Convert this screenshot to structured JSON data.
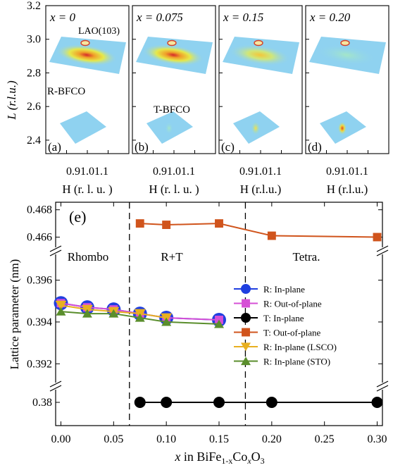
{
  "rsm": {
    "y_axis_label": "L (r.l.u.)",
    "y_ticks": [
      "3.2",
      "3.0",
      "2.8",
      "2.6",
      "2.4"
    ],
    "y_range": [
      2.32,
      3.2
    ],
    "panels": [
      {
        "label": "(a)",
        "x_text": "x = 0",
        "x_ticks": "0.91.01.1",
        "x_axis_label": "H (r. l. u. )",
        "annotations": [
          "LAO(103)",
          "R-BFCO"
        ]
      },
      {
        "label": "(b)",
        "x_text": "x = 0.075",
        "x_ticks": "0.91.01.1",
        "x_axis_label": "H (r. l. u. )",
        "annotations": [
          "T-BFCO"
        ]
      },
      {
        "label": "(c)",
        "x_text": "x = 0.15",
        "x_ticks": "0.91.01.1",
        "x_axis_label": "H (r.l.u.)",
        "annotations": []
      },
      {
        "label": "(d)",
        "x_text": "x = 0.20",
        "x_ticks": "0.91.01.1",
        "x_axis_label": "H (r.l.u.)",
        "annotations": []
      }
    ]
  },
  "lattice": {
    "panel_label": "(e)",
    "ylabel": "Lattice parameter  (nm)",
    "xlabel_prefix": "x",
    "xlabel_text": " in BiFe",
    "xlabel_sub1": "1-x",
    "xlabel_mid": "Co",
    "xlabel_sub2": "x",
    "xlabel_end": "O",
    "xlabel_sub3": "3",
    "regions": [
      "Rhombo",
      "R+T",
      "Tetra."
    ],
    "boundaries": [
      0.065,
      0.175
    ]
  },
  "chart_data": {
    "type": "line",
    "title": "",
    "xlabel": "x in BiFe1-xCoxO3",
    "ylabel": "Lattice parameter (nm)",
    "xlim": [
      -0.005,
      0.305
    ],
    "x_ticks": [
      "0.00",
      "0.05",
      "0.10",
      "0.15",
      "0.20",
      "0.25",
      "0.30"
    ],
    "y_ticks_upper": [
      "0.468",
      "0.466"
    ],
    "y_ticks_middle": [
      "0.396",
      "0.394",
      "0.392"
    ],
    "y_ticks_lower": [
      "0.38"
    ],
    "broken_axis_segments": [
      [
        0.3795,
        0.3805
      ],
      [
        0.3912,
        0.3972
      ],
      [
        0.4652,
        0.4685
      ]
    ],
    "legend_position": "right-middle",
    "series": [
      {
        "name": "R: In-plane",
        "color": "#1f3fe0",
        "marker": "circle",
        "x": [
          0,
          0.025,
          0.05,
          0.075,
          0.1,
          0.15
        ],
        "y": [
          0.3949,
          0.3947,
          0.3946,
          0.3944,
          0.3942,
          0.3941
        ]
      },
      {
        "name": "R: Out-of-plane",
        "color": "#d650d6",
        "marker": "square",
        "x": [
          0,
          0.025,
          0.05,
          0.075,
          0.1,
          0.15
        ],
        "y": [
          0.3949,
          0.3947,
          0.3946,
          0.3944,
          0.3942,
          0.3941
        ]
      },
      {
        "name": "T: In-plane",
        "color": "#000000",
        "marker": "circle",
        "x": [
          0.075,
          0.1,
          0.15,
          0.2,
          0.3
        ],
        "y": [
          0.38,
          0.38,
          0.38,
          0.38,
          0.38
        ]
      },
      {
        "name": "T: Out-of-plane",
        "color": "#d0541c",
        "marker": "square",
        "x": [
          0.075,
          0.1,
          0.15,
          0.2,
          0.3
        ],
        "y": [
          0.467,
          0.4669,
          0.467,
          0.4661,
          0.466
        ]
      },
      {
        "name": "R: In-plane (LSCO)",
        "color": "#e8b020",
        "marker": "triangle-down",
        "x": [
          0,
          0.025,
          0.05,
          0.075,
          0.1
        ],
        "y": [
          0.3948,
          0.3946,
          0.3945,
          0.3944,
          0.3942
        ]
      },
      {
        "name": "R: In-plane (STO)",
        "color": "#5a8e2c",
        "marker": "triangle-up",
        "x": [
          0,
          0.025,
          0.05,
          0.075,
          0.1,
          0.15
        ],
        "y": [
          0.3945,
          0.3944,
          0.3944,
          0.3942,
          0.394,
          0.3939
        ]
      }
    ]
  }
}
